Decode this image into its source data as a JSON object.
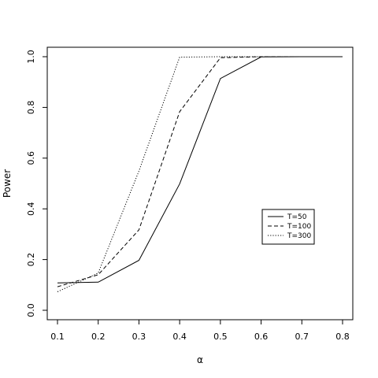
{
  "chart_data": {
    "type": "line",
    "title": "",
    "xlabel": "α",
    "ylabel": "Power",
    "xlim": [
      0.1,
      0.8
    ],
    "ylim": [
      0.0,
      1.0
    ],
    "x_ticks": [
      "0.1",
      "0.2",
      "0.3",
      "0.4",
      "0.5",
      "0.6",
      "0.7",
      "0.8"
    ],
    "y_ticks": [
      "0.0",
      "0.2",
      "0.4",
      "0.6",
      "0.8",
      "1.0"
    ],
    "x": [
      0.1,
      0.2,
      0.3,
      0.4,
      0.5,
      0.6,
      0.7,
      0.8
    ],
    "grid": false,
    "legend_position": "center-right",
    "series": [
      {
        "name": "T=50",
        "line_style": "solid",
        "color": "#000000",
        "values": [
          0.108,
          0.111,
          0.197,
          0.498,
          0.914,
          0.999,
          1.0,
          1.0
        ]
      },
      {
        "name": "T=100",
        "line_style": "dashed",
        "color": "#000000",
        "values": [
          0.093,
          0.14,
          0.317,
          0.783,
          0.996,
          1.0,
          1.0,
          1.0
        ]
      },
      {
        "name": "T=300",
        "line_style": "dotted",
        "color": "#000000",
        "values": [
          0.073,
          0.147,
          0.549,
          0.998,
          1.0,
          1.0,
          1.0,
          1.0
        ]
      }
    ]
  }
}
